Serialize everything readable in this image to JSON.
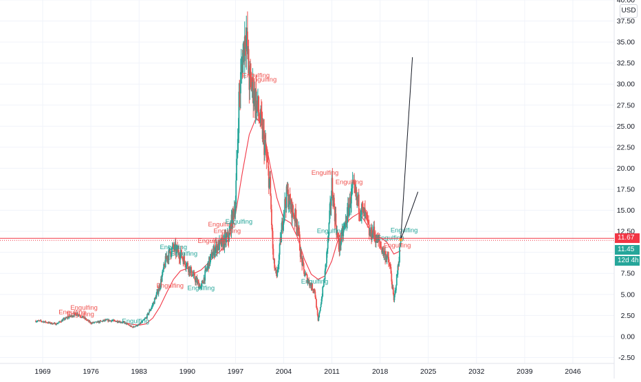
{
  "header": {
    "currency": "USD"
  },
  "colors": {
    "bull": "#26a69a",
    "bear": "#ef5350",
    "ma": "#f23645",
    "trend": "#131722",
    "priceLine": "#f23645",
    "badge_red": "#f23645",
    "badge_teal": "#26a69a"
  },
  "badges": {
    "last_price": "11.67",
    "prev_price": "11.45",
    "countdown": "12d 4h"
  },
  "chart_data": {
    "type": "candlestick",
    "xlim": [
      1962.8,
      2052.0
    ],
    "ylim": [
      -3.2,
      40.0
    ],
    "x_ticks": [
      "1969",
      "1976",
      "1983",
      "1990",
      "1997",
      "2004",
      "2011",
      "2018",
      "2025",
      "2032",
      "2039",
      "2046"
    ],
    "y_ticks": [
      "40.00",
      "37.50",
      "35.00",
      "32.50",
      "30.00",
      "27.50",
      "25.00",
      "22.50",
      "20.00",
      "17.50",
      "15.00",
      "12.50",
      "10.00",
      "7.50",
      "5.00",
      "2.50",
      "0.00",
      "-2.50"
    ],
    "price_path": [
      [
        1968.0,
        1.85
      ],
      [
        1969.0,
        1.8
      ],
      [
        1970.0,
        1.6
      ],
      [
        1971.0,
        1.5
      ],
      [
        1972.0,
        2.0
      ],
      [
        1973.0,
        2.4
      ],
      [
        1974.0,
        2.7
      ],
      [
        1975.0,
        2.2
      ],
      [
        1976.0,
        1.6
      ],
      [
        1977.0,
        1.7
      ],
      [
        1978.0,
        1.9
      ],
      [
        1979.0,
        1.9
      ],
      [
        1980.0,
        1.8
      ],
      [
        1981.0,
        1.6
      ],
      [
        1982.0,
        1.1
      ],
      [
        1983.0,
        1.4
      ],
      [
        1984.0,
        2.2
      ],
      [
        1985.0,
        3.8
      ],
      [
        1986.0,
        6.0
      ],
      [
        1987.0,
        9.5
      ],
      [
        1988.0,
        10.5
      ],
      [
        1989.0,
        9.8
      ],
      [
        1990.0,
        8.5
      ],
      [
        1991.0,
        7.0
      ],
      [
        1992.0,
        5.8
      ],
      [
        1993.0,
        8.5
      ],
      [
        1994.0,
        10.5
      ],
      [
        1995.0,
        11.0
      ],
      [
        1996.0,
        11.8
      ],
      [
        1997.0,
        16.0
      ],
      [
        1997.5,
        28.0
      ],
      [
        1998.0,
        33.0
      ],
      [
        1998.5,
        36.5
      ],
      [
        1999.0,
        30.5
      ],
      [
        1999.5,
        29.5
      ],
      [
        2000.0,
        28.0
      ],
      [
        2000.5,
        26.0
      ],
      [
        2001.0,
        24.0
      ],
      [
        2002.0,
        18.0
      ],
      [
        2002.5,
        9.0
      ],
      [
        2003.0,
        6.8
      ],
      [
        2003.5,
        11.0
      ],
      [
        2004.0,
        15.0
      ],
      [
        2004.5,
        17.0
      ],
      [
        2005.0,
        15.5
      ],
      [
        2006.0,
        13.5
      ],
      [
        2006.5,
        9.5
      ],
      [
        2007.0,
        7.5
      ],
      [
        2008.0,
        6.0
      ],
      [
        2008.5,
        5.5
      ],
      [
        2009.0,
        1.8
      ],
      [
        2009.5,
        4.5
      ],
      [
        2010.0,
        7.5
      ],
      [
        2010.5,
        12.0
      ],
      [
        2011.0,
        18.0
      ],
      [
        2011.5,
        14.0
      ],
      [
        2012.0,
        10.5
      ],
      [
        2013.0,
        13.5
      ],
      [
        2013.5,
        15.5
      ],
      [
        2014.0,
        17.5
      ],
      [
        2014.5,
        16.5
      ],
      [
        2015.0,
        15.5
      ],
      [
        2016.0,
        14.0
      ],
      [
        2016.5,
        12.0
      ],
      [
        2017.0,
        12.5
      ],
      [
        2017.5,
        11.5
      ],
      [
        2018.0,
        11.0
      ],
      [
        2018.5,
        10.0
      ],
      [
        2019.0,
        9.5
      ],
      [
        2019.5,
        8.0
      ],
      [
        2020.0,
        4.2
      ],
      [
        2020.5,
        7.5
      ],
      [
        2021.0,
        11.5
      ]
    ],
    "ma_path": [
      [
        1979.0,
        1.85
      ],
      [
        1980.0,
        1.8
      ],
      [
        1981.0,
        1.6
      ],
      [
        1982.0,
        1.45
      ],
      [
        1983.0,
        1.35
      ],
      [
        1984.0,
        1.5
      ],
      [
        1985.0,
        2.2
      ],
      [
        1986.0,
        3.5
      ],
      [
        1987.0,
        5.2
      ],
      [
        1988.0,
        6.8
      ],
      [
        1989.0,
        7.8
      ],
      [
        1990.0,
        8.1
      ],
      [
        1991.0,
        7.5
      ],
      [
        1992.0,
        7.9
      ],
      [
        1993.0,
        8.7
      ],
      [
        1994.0,
        9.6
      ],
      [
        1995.0,
        10.3
      ],
      [
        1996.0,
        11.6
      ],
      [
        1997.0,
        14.5
      ],
      [
        1998.0,
        19.5
      ],
      [
        1999.0,
        24.0
      ],
      [
        2000.0,
        26.0
      ],
      [
        2001.0,
        25.0
      ],
      [
        2002.0,
        20.5
      ],
      [
        2003.0,
        16.5
      ],
      [
        2004.0,
        14.0
      ],
      [
        2005.0,
        13.5
      ],
      [
        2006.0,
        11.8
      ],
      [
        2007.0,
        9.2
      ],
      [
        2008.0,
        7.4
      ],
      [
        2009.0,
        6.8
      ],
      [
        2010.0,
        7.2
      ],
      [
        2011.0,
        9.0
      ],
      [
        2012.0,
        11.8
      ],
      [
        2013.0,
        13.5
      ],
      [
        2014.0,
        14.2
      ],
      [
        2015.0,
        14.7
      ],
      [
        2016.0,
        13.4
      ],
      [
        2017.0,
        12.0
      ],
      [
        2018.0,
        11.8
      ],
      [
        2019.0,
        11.2
      ],
      [
        2020.0,
        9.8
      ],
      [
        2021.0,
        10.2
      ]
    ],
    "trendlines": [
      {
        "x1": 2021.0,
        "y1": 11.5,
        "x2": 2022.7,
        "y2": 33.2
      },
      {
        "x1": 2021.0,
        "y1": 11.5,
        "x2": 2023.5,
        "y2": 17.2
      }
    ],
    "price_line": 11.67,
    "prev_line": 11.45,
    "annotations": [
      {
        "text": "Engulfing",
        "x": 1973.3,
        "y": 2.65,
        "color": "bear"
      },
      {
        "text": "Engulfing",
        "x": 1975.0,
        "y": 3.2,
        "color": "bear"
      },
      {
        "text": "Engulfing",
        "x": 1974.5,
        "y": 2.4,
        "color": "bear"
      },
      {
        "text": "Engulfing",
        "x": 1982.5,
        "y": 1.6,
        "color": "bull"
      },
      {
        "text": "Engulfing",
        "x": 1988.0,
        "y": 10.4,
        "color": "bull"
      },
      {
        "text": "Engulfing",
        "x": 1989.5,
        "y": 9.6,
        "color": "bull"
      },
      {
        "text": "Engulfing",
        "x": 1987.5,
        "y": 5.8,
        "color": "bear"
      },
      {
        "text": "Engulfing",
        "x": 1993.5,
        "y": 11.1,
        "color": "bear"
      },
      {
        "text": "Engulfing",
        "x": 1995.0,
        "y": 13.1,
        "color": "bear"
      },
      {
        "text": "Engulfing",
        "x": 1995.8,
        "y": 12.3,
        "color": "bear"
      },
      {
        "text": "Engulfing",
        "x": 1997.5,
        "y": 13.4,
        "color": "bull"
      },
      {
        "text": "Engulfing",
        "x": 1992.0,
        "y": 5.5,
        "color": "bull"
      },
      {
        "text": "Engulfing",
        "x": 2000.0,
        "y": 30.8,
        "color": "bear"
      },
      {
        "text": "Engulfing",
        "x": 2001.0,
        "y": 30.3,
        "color": "bear"
      },
      {
        "text": "Engulfing",
        "x": 2010.0,
        "y": 19.2,
        "color": "bear"
      },
      {
        "text": "Engulfing",
        "x": 2013.5,
        "y": 18.1,
        "color": "bear"
      },
      {
        "text": "Engulfing",
        "x": 2008.5,
        "y": 6.3,
        "color": "bull"
      },
      {
        "text": "Engulfing",
        "x": 2010.8,
        "y": 12.3,
        "color": "bull"
      },
      {
        "text": "Engulfing",
        "x": 2019.5,
        "y": 11.5,
        "color": "bull"
      },
      {
        "text": "Engulfing",
        "x": 2021.5,
        "y": 12.4,
        "color": "bull"
      },
      {
        "text": "Engulfing",
        "x": 2020.5,
        "y": 10.6,
        "color": "bear"
      }
    ]
  }
}
